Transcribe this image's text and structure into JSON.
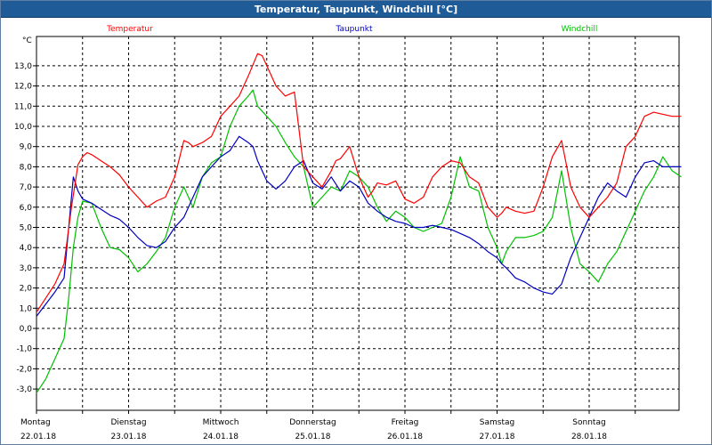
{
  "window": {
    "title": "Temperatur, Taupunkt, Windchill [°C]"
  },
  "chart_data": {
    "type": "line",
    "title": "Temperatur, Taupunkt, Windchill [°C]",
    "ylabel": "°C",
    "ylim": [
      -3.6,
      14.5
    ],
    "y_ticks": [
      "13,0",
      "12,0",
      "11,0",
      "10,0",
      "9,0",
      "8,0",
      "7,0",
      "6,0",
      "5,0",
      "4,0",
      "3,0",
      "2,0",
      "1,0",
      "0,0",
      "-1,0",
      "-2,0",
      "-3,0"
    ],
    "x_range": [
      0,
      7.05
    ],
    "x_ticks": [
      {
        "day": "Montag",
        "date": "22.01.18"
      },
      {
        "day": "Dienstag",
        "date": "23.01.18"
      },
      {
        "day": "Mittwoch",
        "date": "24.01.18"
      },
      {
        "day": "Donnerstag",
        "date": "25.01.18"
      },
      {
        "day": "Freitag",
        "date": "26.01.18"
      },
      {
        "day": "Samstag",
        "date": "27.01.18"
      },
      {
        "day": "Sonntag",
        "date": "28.01.18"
      }
    ],
    "grid": true,
    "legend_position": "top",
    "x_unit": "days since Montag 22.01.18 00:00",
    "series": [
      {
        "name": "Temperatur",
        "color": "#ff0000",
        "x": [
          0,
          0.1,
          0.2,
          0.3,
          0.38,
          0.45,
          0.5,
          0.55,
          0.6,
          0.7,
          0.8,
          0.9,
          1.0,
          1.1,
          1.2,
          1.3,
          1.4,
          1.5,
          1.6,
          1.65,
          1.7,
          1.8,
          1.9,
          2.0,
          2.1,
          2.2,
          2.3,
          2.4,
          2.45,
          2.5,
          2.6,
          2.7,
          2.8,
          2.9,
          3.0,
          3.1,
          3.2,
          3.25,
          3.3,
          3.4,
          3.5,
          3.6,
          3.65,
          3.7,
          3.8,
          3.9,
          4.0,
          4.1,
          4.2,
          4.3,
          4.4,
          4.5,
          4.6,
          4.7,
          4.8,
          4.9,
          5.0,
          5.05,
          5.1,
          5.2,
          5.3,
          5.4,
          5.5,
          5.6,
          5.7,
          5.8,
          5.9,
          6.0,
          6.1,
          6.2,
          6.3,
          6.4,
          6.5,
          6.6,
          6.7,
          6.8,
          6.9,
          7.0
        ],
        "y": [
          0.8,
          1.5,
          2.2,
          3.2,
          6.0,
          8.1,
          8.5,
          8.7,
          8.6,
          8.3,
          8.0,
          7.6,
          7.0,
          6.5,
          6.0,
          6.3,
          6.5,
          7.5,
          9.3,
          9.2,
          9.0,
          9.2,
          9.5,
          10.5,
          11.0,
          11.5,
          12.5,
          13.6,
          13.5,
          13.0,
          12.0,
          11.5,
          11.7,
          8.0,
          7.5,
          7.0,
          7.8,
          8.3,
          8.4,
          9.0,
          7.5,
          6.5,
          6.8,
          7.2,
          7.1,
          7.3,
          6.4,
          6.2,
          6.5,
          7.5,
          8.0,
          8.3,
          8.2,
          7.5,
          7.2,
          6.0,
          5.5,
          5.7,
          6.0,
          5.8,
          5.7,
          5.8,
          7.0,
          8.5,
          9.3,
          7.0,
          6.0,
          5.5,
          6.0,
          6.5,
          7.2,
          9.0,
          9.5,
          10.5,
          10.7,
          10.6,
          10.5,
          10.5
        ],
        "values_note": ""
      },
      {
        "name": "Taupunkt",
        "color": "#0000c0",
        "x": [
          0,
          0.1,
          0.2,
          0.3,
          0.35,
          0.4,
          0.45,
          0.5,
          0.6,
          0.7,
          0.8,
          0.9,
          1.0,
          1.1,
          1.2,
          1.3,
          1.4,
          1.5,
          1.6,
          1.7,
          1.8,
          1.9,
          2.0,
          2.1,
          2.2,
          2.3,
          2.35,
          2.4,
          2.5,
          2.6,
          2.7,
          2.8,
          2.9,
          3.0,
          3.1,
          3.2,
          3.3,
          3.4,
          3.5,
          3.6,
          3.7,
          3.8,
          3.9,
          4.0,
          4.1,
          4.2,
          4.3,
          4.4,
          4.5,
          4.6,
          4.7,
          4.8,
          4.9,
          5.0,
          5.05,
          5.1,
          5.2,
          5.3,
          5.4,
          5.5,
          5.6,
          5.7,
          5.8,
          5.9,
          6.0,
          6.1,
          6.2,
          6.3,
          6.4,
          6.5,
          6.6,
          6.7,
          6.8,
          6.9,
          7.0
        ],
        "y": [
          0.6,
          1.2,
          1.8,
          2.5,
          5.0,
          7.5,
          6.8,
          6.4,
          6.2,
          5.9,
          5.6,
          5.4,
          5.0,
          4.5,
          4.1,
          4.0,
          4.3,
          5.0,
          5.5,
          6.5,
          7.5,
          8.0,
          8.5,
          8.8,
          9.5,
          9.2,
          9.0,
          8.3,
          7.3,
          6.9,
          7.3,
          8.0,
          8.3,
          7.2,
          6.9,
          7.5,
          6.8,
          7.3,
          7.0,
          6.2,
          5.8,
          5.5,
          5.3,
          5.2,
          5.0,
          5.0,
          5.1,
          5.0,
          4.9,
          4.7,
          4.5,
          4.2,
          3.8,
          3.5,
          3.2,
          3.0,
          2.5,
          2.3,
          2.0,
          1.8,
          1.7,
          2.2,
          3.5,
          4.5,
          5.5,
          6.5,
          7.2,
          6.8,
          6.5,
          7.5,
          8.2,
          8.3,
          8.0,
          8.0,
          8.0
        ],
        "values_note": ""
      },
      {
        "name": "Windchill",
        "color": "#00c000",
        "x": [
          0,
          0.1,
          0.2,
          0.3,
          0.35,
          0.4,
          0.45,
          0.5,
          0.6,
          0.7,
          0.8,
          0.9,
          1.0,
          1.1,
          1.2,
          1.3,
          1.4,
          1.5,
          1.6,
          1.7,
          1.8,
          1.9,
          2.0,
          2.1,
          2.2,
          2.3,
          2.35,
          2.4,
          2.5,
          2.6,
          2.7,
          2.8,
          2.9,
          3.0,
          3.1,
          3.2,
          3.3,
          3.4,
          3.5,
          3.6,
          3.7,
          3.8,
          3.9,
          4.0,
          4.1,
          4.2,
          4.3,
          4.4,
          4.5,
          4.6,
          4.7,
          4.8,
          4.9,
          5.0,
          5.05,
          5.1,
          5.2,
          5.3,
          5.4,
          5.5,
          5.6,
          5.7,
          5.8,
          5.9,
          6.0,
          6.1,
          6.2,
          6.3,
          6.4,
          6.5,
          6.6,
          6.7,
          6.8,
          6.9,
          7.0
        ],
        "y": [
          -3.2,
          -2.5,
          -1.5,
          -0.5,
          1.5,
          4.0,
          5.5,
          6.3,
          6.2,
          5.0,
          4.0,
          3.9,
          3.5,
          2.8,
          3.2,
          3.8,
          4.5,
          6.0,
          7.0,
          6.0,
          7.5,
          8.2,
          8.5,
          10.0,
          11.0,
          11.5,
          11.8,
          11.0,
          10.5,
          10.0,
          9.2,
          8.5,
          8.0,
          6.0,
          6.5,
          7.0,
          6.8,
          7.8,
          7.5,
          7.0,
          6.0,
          5.3,
          5.8,
          5.5,
          5.0,
          4.8,
          5.0,
          5.2,
          6.5,
          8.5,
          7.0,
          6.8,
          5.0,
          4.0,
          3.2,
          3.8,
          4.5,
          4.5,
          4.6,
          4.8,
          5.5,
          7.8,
          5.0,
          3.2,
          2.8,
          2.3,
          3.2,
          3.8,
          4.8,
          5.8,
          6.8,
          7.5,
          8.5,
          7.8,
          7.5
        ],
        "values_note": ""
      }
    ]
  }
}
